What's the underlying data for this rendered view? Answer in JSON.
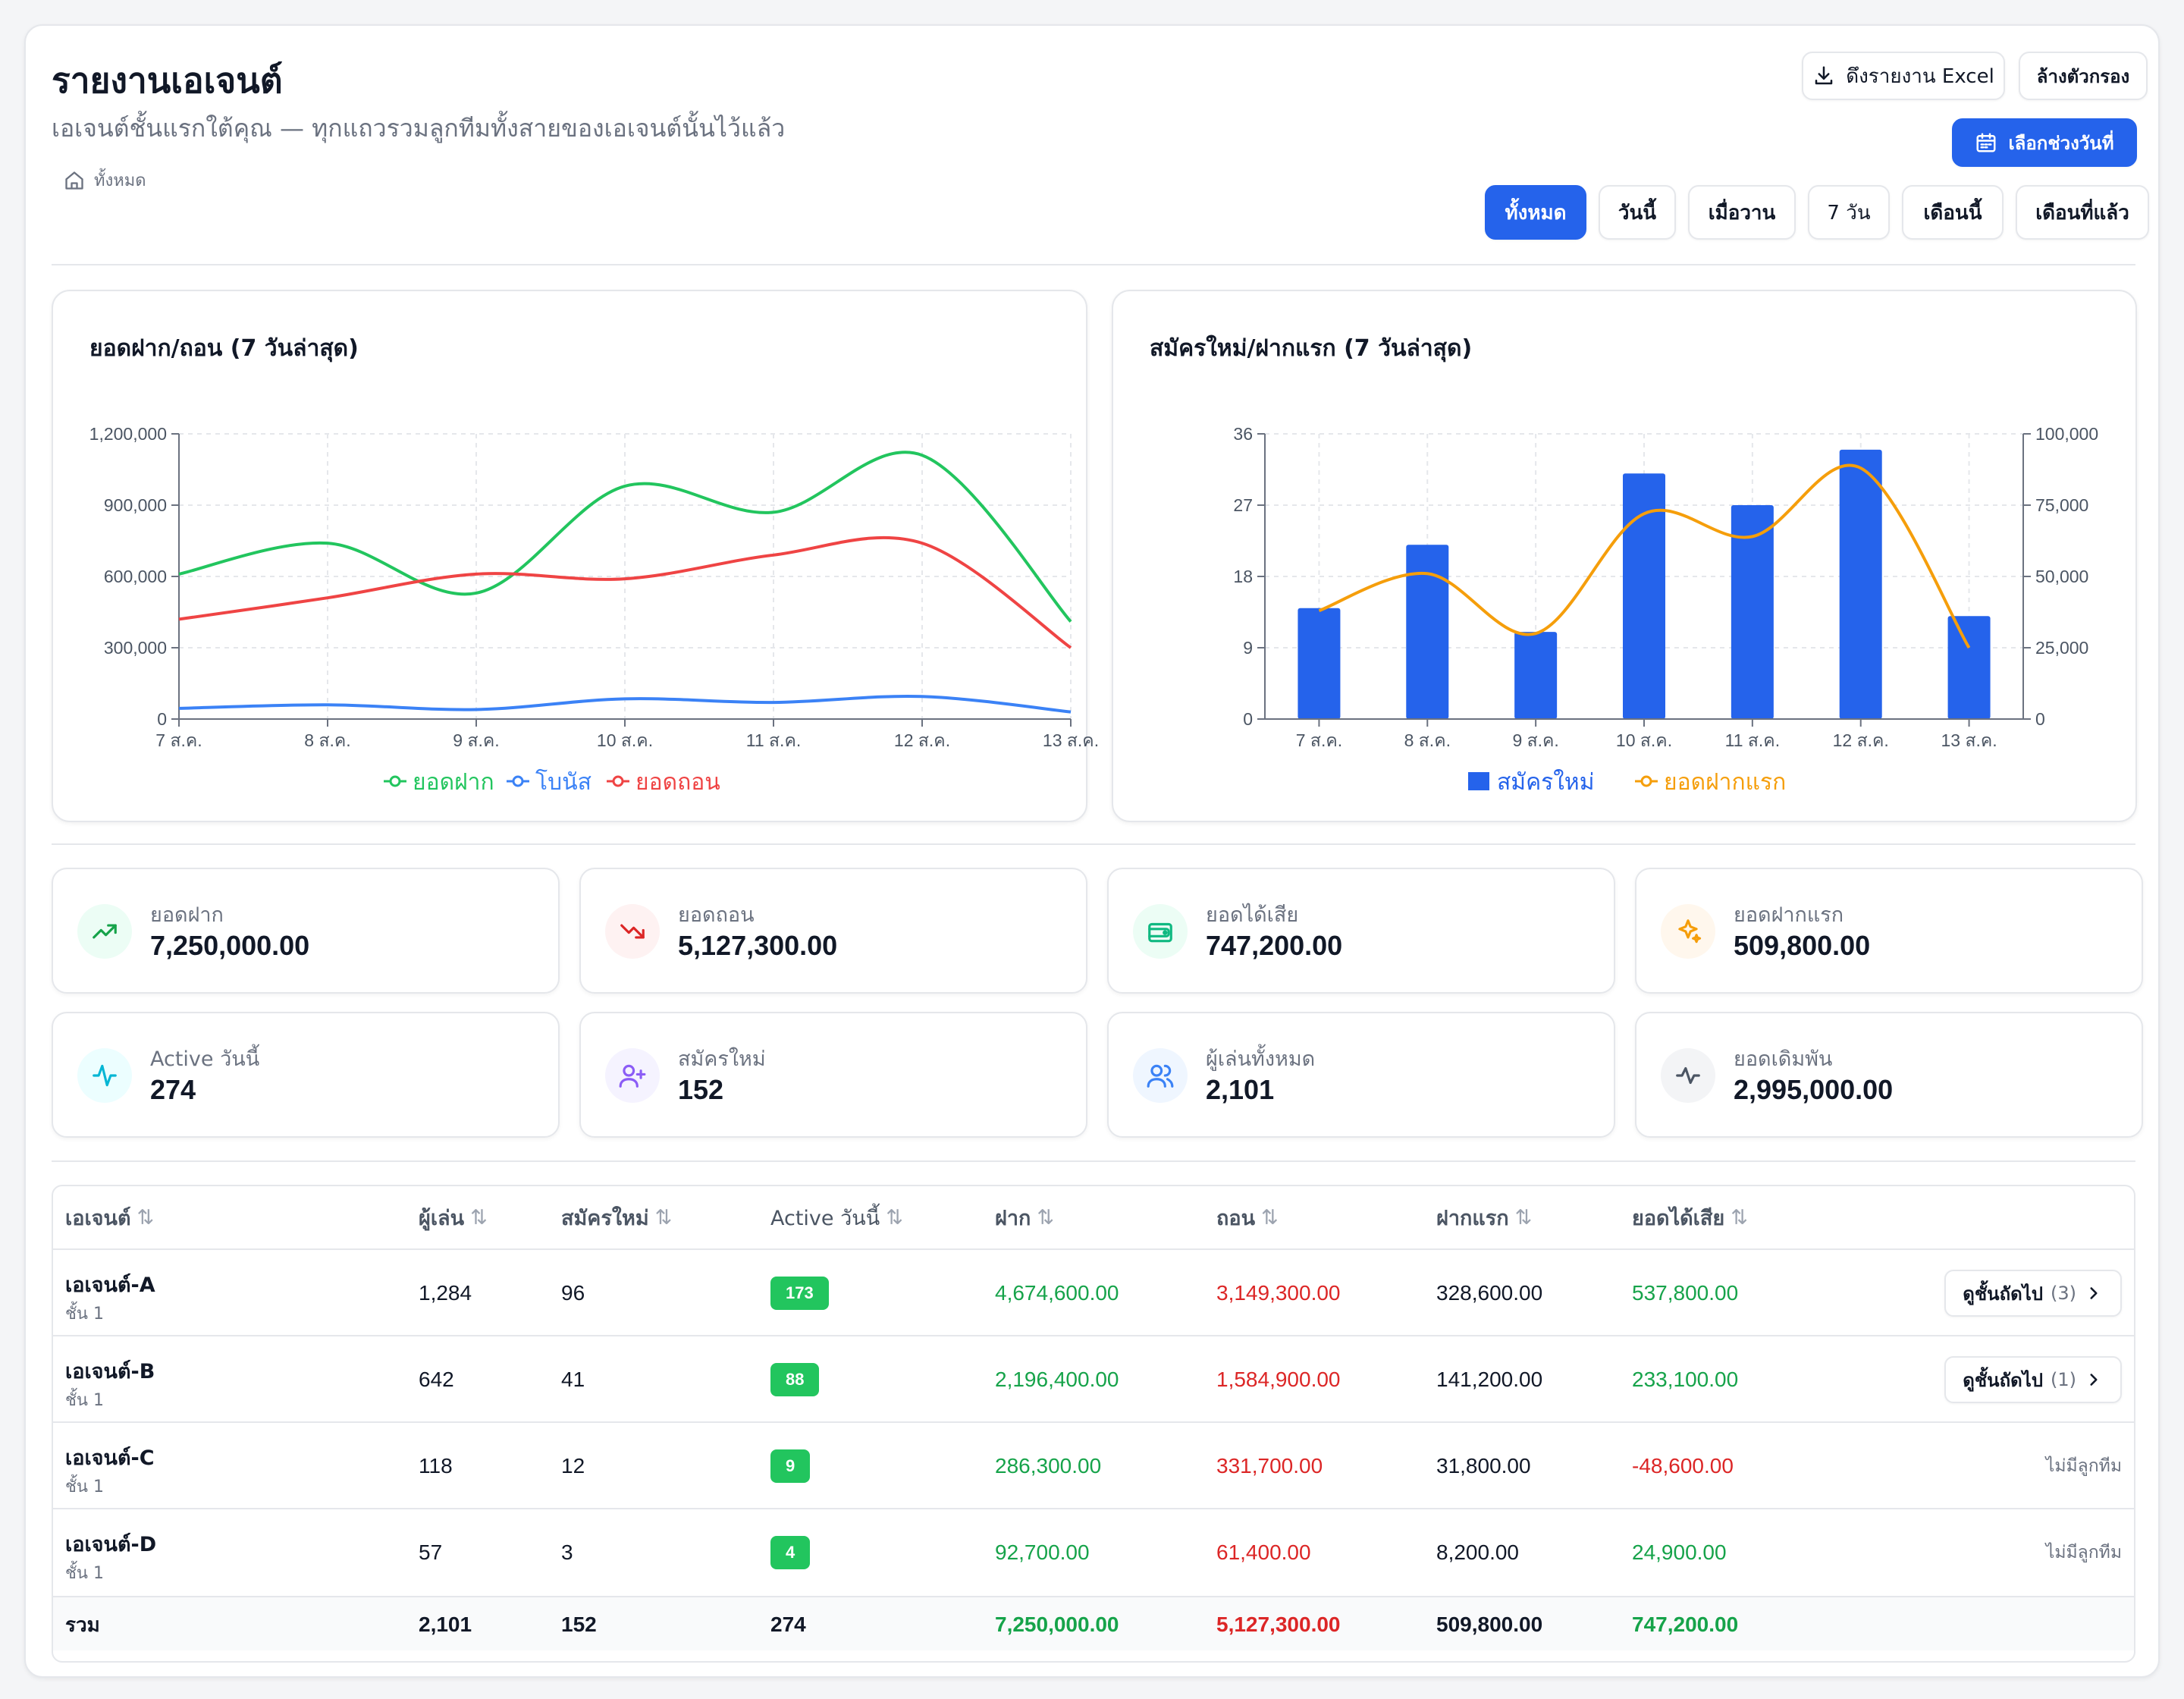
{
  "header": {
    "title": "รายงานเอเจนต์",
    "subtitle": "เอเจนต์ชั้นแรกใต้คุณ — ทุกแถวรวมลูกทีมทั้งสายของเอเจนต์นั้นไว้แล้ว",
    "breadcrumb": "ทั้งหมด",
    "export_label": "ดึงรายงาน Excel",
    "clear_label": "ล้างตัวกรอง",
    "date_range_label": "เลือกช่วงวันที่"
  },
  "filters": [
    "ทั้งหมด",
    "วันนี้",
    "เมื่อวาน",
    "7 วัน",
    "เดือนนี้",
    "เดือนที่แล้ว"
  ],
  "active_filter": "ทั้งหมด",
  "colors": {
    "primary": "#2563eb",
    "green": "#22c55e",
    "red": "#ef4444",
    "blue": "#3b82f6",
    "orange": "#f59e0b"
  },
  "chart_data": [
    {
      "type": "line",
      "title": "ยอดฝาก/ถอน (7 วันล่าสุด)",
      "categories": [
        "7 ส.ค.",
        "8 ส.ค.",
        "9 ส.ค.",
        "10 ส.ค.",
        "11 ส.ค.",
        "12 ส.ค.",
        "13 ส.ค."
      ],
      "series": [
        {
          "name": "ยอดฝาก",
          "values": [
            610000,
            740000,
            530000,
            980000,
            870000,
            1110000,
            410000
          ]
        },
        {
          "name": "โบนัส",
          "values": [
            45000,
            60000,
            40000,
            85000,
            70000,
            95000,
            30000
          ]
        },
        {
          "name": "ยอดถอน",
          "values": [
            420000,
            510000,
            610000,
            590000,
            690000,
            740000,
            300000
          ]
        }
      ],
      "ylim": [
        0,
        1200000
      ],
      "yticks": [
        "0",
        "300,000",
        "600,000",
        "900,000",
        "1,200,000"
      ],
      "grid": true,
      "legend": "bottom"
    },
    {
      "type": "bar",
      "title": "สมัครใหม่/ฝากแรก (7 วันล่าสุด)",
      "categories": [
        "7 ส.ค.",
        "8 ส.ค.",
        "9 ส.ค.",
        "10 ส.ค.",
        "11 ส.ค.",
        "12 ส.ค.",
        "13 ส.ค."
      ],
      "series": [
        {
          "name": "สมัครใหม่",
          "type": "bar",
          "axis": "left",
          "values": [
            14,
            22,
            11,
            31,
            27,
            34,
            13
          ]
        },
        {
          "name": "ยอดฝากแรก",
          "type": "line",
          "axis": "right",
          "values": [
            38000,
            51000,
            30000,
            72000,
            64000,
            88000,
            25000
          ]
        }
      ],
      "ylim_left": [
        0,
        36
      ],
      "yticks_left": [
        "0",
        "9",
        "18",
        "27",
        "36"
      ],
      "ylim_right": [
        0,
        100000
      ],
      "yticks_right": [
        "0",
        "25,000",
        "50,000",
        "75,000",
        "100,000"
      ],
      "grid": true,
      "legend": "bottom"
    }
  ],
  "stats": [
    {
      "label": "ยอดฝาก",
      "value": "7,250,000.00",
      "icon": "trending-up-icon",
      "bg": "#ecfdf5",
      "fg": "#16a34a"
    },
    {
      "label": "ยอดถอน",
      "value": "5,127,300.00",
      "icon": "trending-down-icon",
      "bg": "#fef2f2",
      "fg": "#dc2626"
    },
    {
      "label": "ยอดได้เสีย",
      "value": "747,200.00",
      "icon": "wallet-icon",
      "bg": "#ecfdf5",
      "fg": "#10b981"
    },
    {
      "label": "ยอดฝากแรก",
      "value": "509,800.00",
      "icon": "sparkles-icon",
      "bg": "#fff7ed",
      "fg": "#f59e0b"
    },
    {
      "label": "Active วันนี้",
      "value": "274",
      "icon": "activity-icon",
      "bg": "#ecfeff",
      "fg": "#06b6d4"
    },
    {
      "label": "สมัครใหม่",
      "value": "152",
      "icon": "user-plus-icon",
      "bg": "#f5f3ff",
      "fg": "#8b5cf6"
    },
    {
      "label": "ผู้เล่นทั้งหมด",
      "value": "2,101",
      "icon": "users-icon",
      "bg": "#eff6ff",
      "fg": "#3b82f6"
    },
    {
      "label": "ยอดเดิมพัน",
      "value": "2,995,000.00",
      "icon": "pulse-icon",
      "bg": "#f3f4f6",
      "fg": "#4b5563"
    }
  ],
  "table": {
    "columns": [
      "เอเจนต์",
      "ผู้เล่น",
      "สมัครใหม่",
      "Active วันนี้",
      "ฝาก",
      "ถอน",
      "ฝากแรก",
      "ยอดได้เสีย"
    ],
    "rows": [
      {
        "name": "เอเจนต์-A",
        "tier": "ชั้น 1",
        "players": "1,284",
        "new": "96",
        "active": "173",
        "deposit": "4,674,600.00",
        "withdraw": "3,149,300.00",
        "first": "328,600.00",
        "pl": "537,800.00",
        "action": "ดูชั้นถัดไป",
        "count": "(3)"
      },
      {
        "name": "เอเจนต์-B",
        "tier": "ชั้น 1",
        "players": "642",
        "new": "41",
        "active": "88",
        "deposit": "2,196,400.00",
        "withdraw": "1,584,900.00",
        "first": "141,200.00",
        "pl": "233,100.00",
        "action": "ดูชั้นถัดไป",
        "count": "(1)"
      },
      {
        "name": "เอเจนต์-C",
        "tier": "ชั้น 1",
        "players": "118",
        "new": "12",
        "active": "9",
        "deposit": "286,300.00",
        "withdraw": "331,700.00",
        "first": "31,800.00",
        "pl": "-48,600.00",
        "no_team": "ไม่มีลูกทีม"
      },
      {
        "name": "เอเจนต์-D",
        "tier": "ชั้น 1",
        "players": "57",
        "new": "3",
        "active": "4",
        "deposit": "92,700.00",
        "withdraw": "61,400.00",
        "first": "8,200.00",
        "pl": "24,900.00",
        "no_team": "ไม่มีลูกทีม"
      }
    ],
    "total": {
      "label": "รวม",
      "players": "2,101",
      "new": "152",
      "active": "274",
      "deposit": "7,250,000.00",
      "withdraw": "5,127,300.00",
      "first": "509,800.00",
      "pl": "747,200.00"
    }
  }
}
